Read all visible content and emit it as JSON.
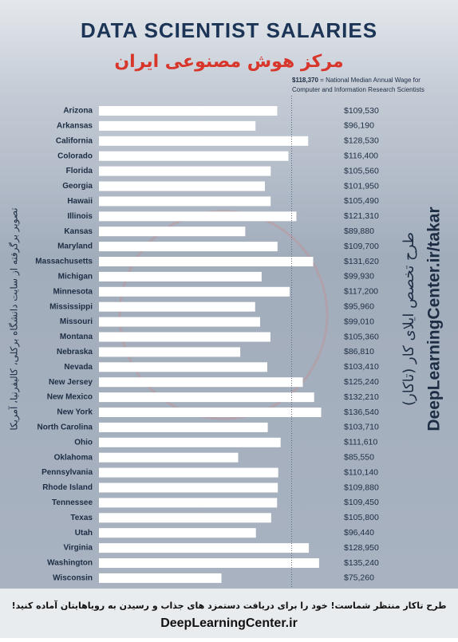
{
  "chart_data": {
    "type": "bar",
    "orientation": "horizontal",
    "title": "DATA SCIENTIST SALARIES",
    "subtitle": "مرکز هوش مصنوعی ایران",
    "reference": {
      "value": 118370,
      "label": "$118,370",
      "text": "= National Median Annual Wage for",
      "text2": "Computer and Information Research Scientists"
    },
    "categories": [
      "Arizona",
      "Arkansas",
      "California",
      "Colorado",
      "Florida",
      "Georgia",
      "Hawaii",
      "Illinois",
      "Kansas",
      "Maryland",
      "Massachusetts",
      "Michigan",
      "Minnesota",
      "Mississippi",
      "Missouri",
      "Montana",
      "Nebraska",
      "Nevada",
      "New Jersey",
      "New Mexico",
      "New York",
      "North Carolina",
      "Ohio",
      "Oklahoma",
      "Pennsylvania",
      "Rhode Island",
      "Tennessee",
      "Texas",
      "Utah",
      "Virginia",
      "Washington",
      "Wisconsin"
    ],
    "values": [
      109530,
      96190,
      128530,
      116400,
      105560,
      101950,
      105490,
      121310,
      89880,
      109700,
      131620,
      99930,
      117200,
      95960,
      99010,
      105360,
      86810,
      103410,
      125240,
      132210,
      136540,
      103710,
      111610,
      85550,
      110140,
      109880,
      109450,
      105800,
      96440,
      128950,
      135240,
      75260
    ],
    "value_labels": [
      "$109,530",
      "$96,190",
      "$128,530",
      "$116,400",
      "$105,560",
      "$101,950",
      "$105,490",
      "$121,310",
      "$89,880",
      "$109,700",
      "$131,620",
      "$99,930",
      "$117,200",
      "$95,960",
      "$99,010",
      "$105,360",
      "$86,810",
      "$103,410",
      "$125,240",
      "$132,210",
      "$136,540",
      "$103,710",
      "$111,610",
      "$85,550",
      "$110,140",
      "$109,880",
      "$109,450",
      "$105,800",
      "$96,440",
      "$128,950",
      "$135,240",
      "$75,260"
    ],
    "color": "#ffffff",
    "xlim": [
      0,
      150000
    ],
    "source_note": "تصویر برگرفته از سایت دانشگاه برکلی، کالیفرنیا، آمریکا",
    "side_title": "طرح تخصص ایلای کار (تاکار)",
    "side_url": "DeepLearningCenter.ir/takar",
    "footer": "طرح تاکار منتظر شماست! خود را برای دریافت دستمزد های جذاب و رسیدن به رویاهایتان آماده کنید!",
    "footer_url": "DeepLearningCenter.ir"
  }
}
